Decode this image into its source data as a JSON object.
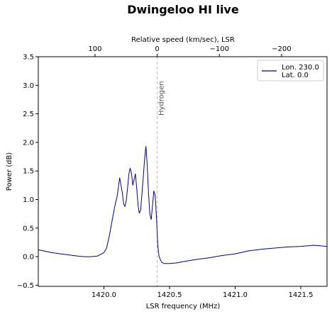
{
  "chart_data": {
    "type": "line",
    "title": "Dwingeloo HI live",
    "xlabel": "LSR frequency (MHz)",
    "ylabel": "Power (dB)",
    "top_xlabel": "Relative speed (km/sec), LSR",
    "xlim": [
      1419.5,
      1421.7
    ],
    "ylim": [
      -0.52,
      3.5
    ],
    "x_ticks": [
      1420.0,
      1420.5,
      1421.0,
      1421.5
    ],
    "x_tick_labels": [
      "1420.0",
      "1420.5",
      "1421.0",
      "1421.5"
    ],
    "y_ticks": [
      -0.5,
      0.0,
      0.5,
      1.0,
      1.5,
      2.0,
      2.5,
      3.0,
      3.5
    ],
    "y_tick_labels": [
      "−0.5",
      "0.0",
      "0.5",
      "1.0",
      "1.5",
      "2.0",
      "2.5",
      "3.0",
      "3.5"
    ],
    "top_ticks": [
      100,
      0,
      -100,
      -200
    ],
    "top_tick_labels": [
      "100",
      "0",
      "−100",
      "−200"
    ],
    "rest_frequency": 1420.4058,
    "annotation": {
      "text": "Hydrogen",
      "x": 1420.4058
    },
    "legend_lines": [
      "Lon. 230.0",
      "Lat.  0.0"
    ],
    "legend_position": "top-right",
    "grid": false,
    "line_color": "#00008b",
    "series": [
      {
        "x": [
          1419.5,
          1419.6,
          1419.7,
          1419.8,
          1419.85,
          1419.9,
          1419.95,
          1420.0,
          1420.02,
          1420.04,
          1420.06,
          1420.07,
          1420.08,
          1420.09,
          1420.1,
          1420.11,
          1420.12,
          1420.14,
          1420.15,
          1420.16,
          1420.17,
          1420.18,
          1420.19,
          1420.2,
          1420.21,
          1420.22,
          1420.24,
          1420.25,
          1420.26,
          1420.27,
          1420.28,
          1420.29,
          1420.3,
          1420.31,
          1420.32,
          1420.33,
          1420.34,
          1420.35,
          1420.36,
          1420.37,
          1420.38,
          1420.39,
          1420.4,
          1420.41,
          1420.42,
          1420.44,
          1420.46,
          1420.5,
          1420.55,
          1420.6,
          1420.7,
          1420.8,
          1420.9,
          1421.0,
          1421.1,
          1421.2,
          1421.3,
          1421.4,
          1421.5,
          1421.6,
          1421.7
        ],
        "y": [
          0.12,
          0.07,
          0.04,
          0.01,
          0.0,
          0.0,
          0.01,
          0.07,
          0.15,
          0.35,
          0.6,
          0.72,
          0.85,
          0.95,
          1.05,
          1.2,
          1.38,
          1.12,
          0.92,
          0.88,
          0.98,
          1.2,
          1.45,
          1.55,
          1.45,
          1.25,
          1.45,
          1.2,
          0.9,
          0.76,
          0.82,
          1.1,
          1.4,
          1.7,
          1.93,
          1.6,
          1.1,
          0.75,
          0.65,
          0.88,
          1.15,
          1.08,
          0.7,
          0.2,
          0.0,
          -0.1,
          -0.12,
          -0.12,
          -0.11,
          -0.09,
          -0.05,
          -0.02,
          0.02,
          0.05,
          0.1,
          0.13,
          0.15,
          0.17,
          0.18,
          0.2,
          0.18
        ]
      }
    ]
  }
}
